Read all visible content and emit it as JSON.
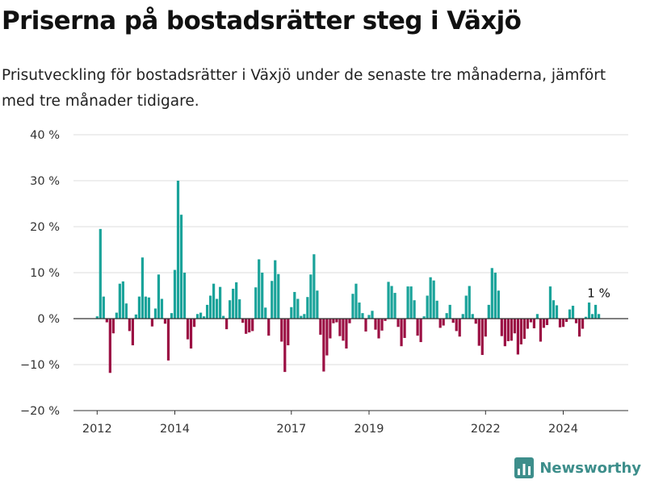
{
  "header": {
    "title": "Priserna på bostadsrätter steg i Växjö",
    "subtitle": "Prisutveckling för bostadsrätter i Växjö under de senaste tre månaderna, jämfört med tre månader tidigare."
  },
  "brand": {
    "name": "Newsworthy",
    "icon": "bar-chart-logo-icon"
  },
  "colors": {
    "positive": "#1aa39a",
    "negative": "#9b0f43",
    "grid": "#dddddd",
    "axis": "#333333",
    "brand": "#3d8e8b"
  },
  "chart_data": {
    "type": "bar",
    "x_start": "2012-01",
    "x_step": "month",
    "x_ticks": [
      "2012",
      "2014",
      "2017",
      "2019",
      "2022",
      "2024"
    ],
    "y_ticks": [
      "40 %",
      "30 %",
      "20 %",
      "10 %",
      "0 %",
      "−10 %",
      "−20 %"
    ],
    "ylim": [
      -20,
      40
    ],
    "grid": true,
    "annotation": {
      "text": "1 %"
    },
    "values": [
      0.5,
      19.5,
      4.8,
      -0.8,
      -11.8,
      -3.2,
      1.3,
      7.6,
      8.1,
      3.3,
      -2.7,
      -5.8,
      0.9,
      4.8,
      13.3,
      4.8,
      4.6,
      -1.7,
      2.2,
      9.6,
      4.3,
      -1.1,
      -9.1,
      1.2,
      10.6,
      30.0,
      22.6,
      10.0,
      -4.5,
      -6.5,
      -1.8,
      1.0,
      1.3,
      0.5,
      3.0,
      5.0,
      7.6,
      4.3,
      6.9,
      0.6,
      -2.3,
      4.0,
      6.5,
      7.9,
      4.2,
      -0.9,
      -3.3,
      -3.0,
      -2.7,
      6.8,
      12.9,
      10.0,
      2.4,
      -3.7,
      8.2,
      12.7,
      9.7,
      -5.0,
      -11.6,
      -5.8,
      2.5,
      5.8,
      4.3,
      0.6,
      1.0,
      4.7,
      9.6,
      14.0,
      6.1,
      -3.5,
      -11.5,
      -8.0,
      -4.3,
      -1.0,
      -0.8,
      -3.8,
      -4.8,
      -6.5,
      -1.0,
      5.4,
      7.6,
      3.5,
      1.2,
      -2.8,
      0.8,
      1.7,
      -2.4,
      -4.3,
      -2.6,
      -0.5,
      8.0,
      7.1,
      5.6,
      -1.8,
      -6.0,
      -4.2,
      7.0,
      7.0,
      4.0,
      -3.7,
      -5.1,
      0.5,
      5.0,
      9.0,
      8.3,
      3.9,
      -2.0,
      -1.5,
      1.2,
      3.0,
      -0.9,
      -2.7,
      -3.9,
      1.0,
      5.0,
      7.1,
      1.0,
      -1.1,
      -5.9,
      -7.9,
      -3.9,
      3.0,
      11.0,
      10.0,
      6.1,
      -3.8,
      -6.0,
      -4.9,
      -4.8,
      -3.2,
      -7.8,
      -5.6,
      -4.4,
      -2.2,
      -0.8,
      -2.1,
      1.0,
      -5.0,
      -2.0,
      -1.4,
      7.0,
      4.0,
      2.9,
      -1.9,
      -1.8,
      -0.7,
      2.0,
      2.8,
      -1.0,
      -3.9,
      -2.2,
      0.4,
      3.5,
      1.0,
      3.0,
      1.0
    ]
  }
}
